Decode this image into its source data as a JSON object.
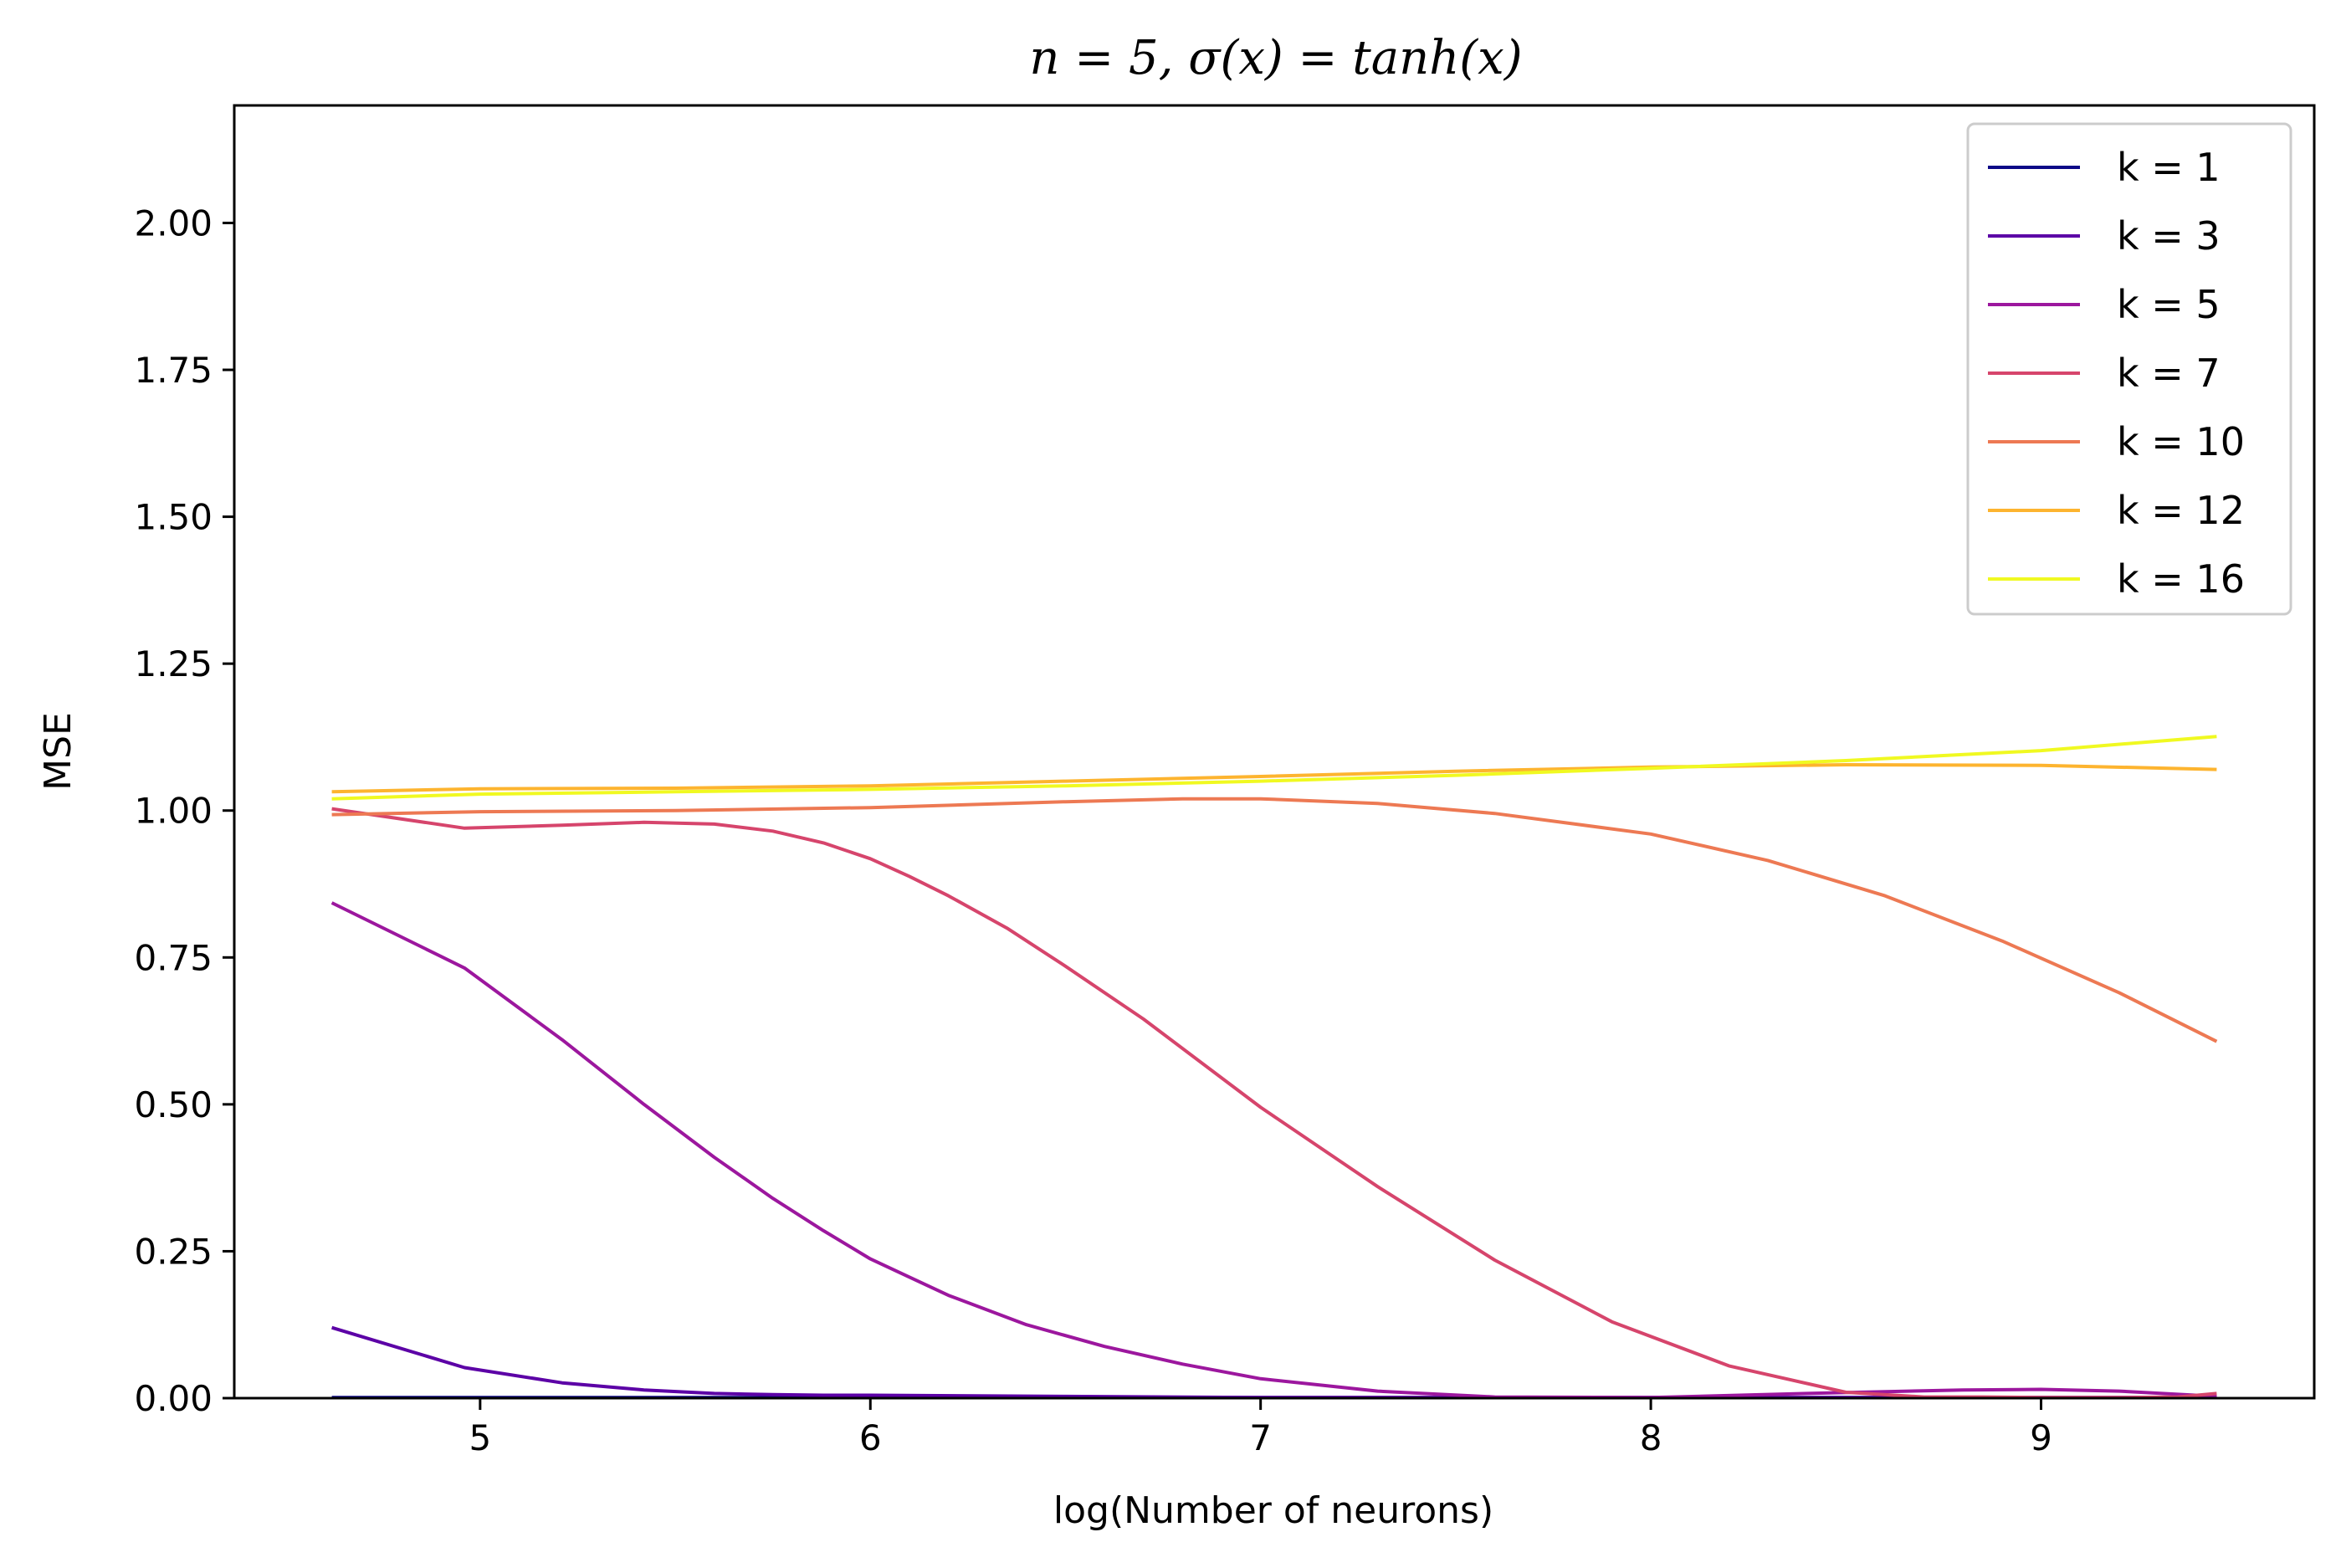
{
  "chart_data": {
    "type": "line",
    "title": "n = 5, σ(x) = tanh(x)",
    "xlabel": "log(Number of neurons)",
    "ylabel": "MSE",
    "xlim": [
      4.37,
      9.7
    ],
    "ylim": [
      0,
      2.2
    ],
    "xticks": [
      5,
      6,
      7,
      8,
      9
    ],
    "yticks": [
      0.0,
      0.25,
      0.5,
      0.75,
      1.0,
      1.25,
      1.5,
      1.75,
      2.0
    ],
    "ytick_labels": [
      "0.00",
      "0.25",
      "0.50",
      "0.75",
      "1.00",
      "1.25",
      "1.50",
      "1.75",
      "2.00"
    ],
    "legend": "upper right",
    "grid": false,
    "series": [
      {
        "name": "k = 1",
        "color": "#0d0887",
        "x": [
          4.62,
          9.45
        ],
        "y": [
          0.001,
          0.001
        ]
      },
      {
        "name": "k = 3",
        "color": "#5c01a6",
        "x": [
          4.62,
          4.96,
          5.21,
          5.42,
          5.6,
          5.75,
          5.88,
          6.0,
          6.5,
          7.0,
          8.0,
          9.0,
          9.45
        ],
        "y": [
          0.12,
          0.052,
          0.026,
          0.014,
          0.008,
          0.006,
          0.005,
          0.005,
          0.003,
          0.001,
          0.001,
          0.001,
          0.001
        ]
      },
      {
        "name": "k = 5",
        "color": "#9c179e",
        "x": [
          4.62,
          4.96,
          5.21,
          5.42,
          5.6,
          5.75,
          5.88,
          6.0,
          6.2,
          6.4,
          6.6,
          6.8,
          7.0,
          7.3,
          7.6,
          8.0,
          8.4,
          8.8,
          9.0,
          9.2,
          9.45
        ],
        "y": [
          0.843,
          0.732,
          0.61,
          0.5,
          0.41,
          0.34,
          0.285,
          0.237,
          0.175,
          0.125,
          0.088,
          0.058,
          0.033,
          0.012,
          0.002,
          0.001,
          0.008,
          0.014,
          0.015,
          0.012,
          0.003
        ]
      },
      {
        "name": "k = 7",
        "color": "#d6456c",
        "x": [
          4.62,
          4.96,
          5.21,
          5.42,
          5.6,
          5.75,
          5.88,
          6.0,
          6.1,
          6.2,
          6.35,
          6.5,
          6.7,
          7.0,
          7.3,
          7.6,
          7.9,
          8.2,
          8.5,
          8.7,
          8.85,
          9.0,
          9.2,
          9.35,
          9.45
        ],
        "y": [
          1.003,
          0.97,
          0.975,
          0.98,
          0.977,
          0.965,
          0.945,
          0.918,
          0.888,
          0.855,
          0.8,
          0.735,
          0.645,
          0.495,
          0.36,
          0.235,
          0.13,
          0.055,
          0.01,
          0.002,
          0.002,
          0.001,
          0.001,
          0.002,
          0.008
        ]
      },
      {
        "name": "k = 10",
        "color": "#ed7953",
        "x": [
          4.62,
          5.0,
          5.5,
          6.0,
          6.5,
          6.8,
          7.0,
          7.3,
          7.6,
          8.0,
          8.3,
          8.6,
          8.9,
          9.2,
          9.45
        ],
        "y": [
          0.993,
          0.998,
          1.0,
          1.005,
          1.015,
          1.02,
          1.02,
          1.012,
          0.995,
          0.96,
          0.915,
          0.855,
          0.778,
          0.69,
          0.607
        ]
      },
      {
        "name": "k = 12",
        "color": "#fdb42f",
        "x": [
          4.62,
          5.0,
          5.5,
          6.0,
          6.5,
          7.0,
          7.5,
          8.0,
          8.5,
          9.0,
          9.45
        ],
        "y": [
          1.032,
          1.037,
          1.038,
          1.042,
          1.05,
          1.058,
          1.067,
          1.074,
          1.078,
          1.077,
          1.07
        ]
      },
      {
        "name": "k = 16",
        "color": "#f0f921",
        "x": [
          4.62,
          5.0,
          5.5,
          6.0,
          6.5,
          7.0,
          7.5,
          8.0,
          8.5,
          9.0,
          9.45
        ],
        "y": [
          1.02,
          1.028,
          1.032,
          1.036,
          1.042,
          1.05,
          1.06,
          1.072,
          1.085,
          1.102,
          1.126
        ]
      }
    ]
  }
}
